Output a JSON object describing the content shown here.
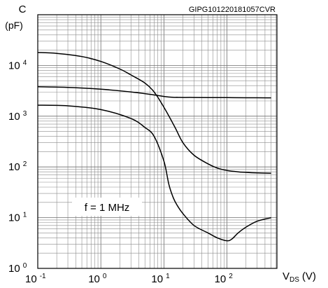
{
  "chart_data": {
    "type": "line",
    "figure_code": "GIPG101220181057CVR",
    "ylabel_symbol": "C",
    "ylabel_unit": "(pF)",
    "xlabel_symbol": "V",
    "xlabel_subscript": "DS",
    "xlabel_unit": "(V)",
    "annotation": "f = 1 MHz",
    "x_scale": "log",
    "y_scale": "log",
    "xlim": [
      0.1,
      600
    ],
    "ylim": [
      1,
      100000
    ],
    "grid": true,
    "x_ticks": [
      {
        "value": 0.1,
        "base": "10",
        "exp": "-1"
      },
      {
        "value": 1,
        "base": "10",
        "exp": "0"
      },
      {
        "value": 10,
        "base": "10",
        "exp": "1"
      },
      {
        "value": 100,
        "base": "10",
        "exp": "2"
      }
    ],
    "y_ticks": [
      {
        "value": 1,
        "base": "10",
        "exp": "0"
      },
      {
        "value": 10,
        "base": "10",
        "exp": "1"
      },
      {
        "value": 100,
        "base": "10",
        "exp": "2"
      },
      {
        "value": 1000,
        "base": "10",
        "exp": "3"
      },
      {
        "value": 10000,
        "base": "10",
        "exp": "4"
      }
    ],
    "series": [
      {
        "x": [
          0.1,
          0.2,
          0.5,
          1,
          2,
          3,
          5,
          7,
          10,
          15,
          20,
          30,
          50,
          70,
          100,
          150,
          200,
          300,
          500
        ],
        "y": [
          18000,
          17300,
          15000,
          12000,
          8500,
          6500,
          4500,
          3000,
          1500,
          600,
          300,
          170,
          115,
          95,
          85,
          80,
          78,
          76,
          75
        ]
      },
      {
        "x": [
          0.1,
          0.3,
          1,
          3,
          6,
          10,
          14,
          16,
          20,
          30,
          50,
          100,
          200,
          500
        ],
        "y": [
          3800,
          3700,
          3400,
          3000,
          2700,
          2450,
          2350,
          2350,
          2340,
          2340,
          2330,
          2320,
          2310,
          2300
        ]
      },
      {
        "x": [
          0.1,
          0.3,
          1,
          3,
          5,
          7,
          10,
          12,
          14,
          16,
          20,
          30,
          50,
          70,
          100,
          120,
          150,
          200,
          300,
          500
        ],
        "y": [
          1650,
          1600,
          1350,
          900,
          600,
          400,
          130,
          45,
          25,
          18,
          12,
          7,
          5,
          4,
          3.5,
          3.8,
          5,
          6.5,
          8.5,
          10
        ]
      }
    ]
  }
}
